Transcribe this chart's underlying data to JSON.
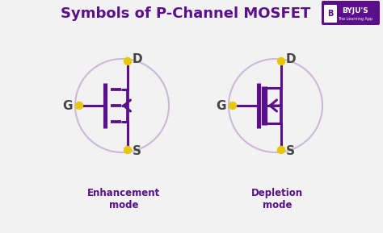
{
  "title": "Symbols of P-Channel MOSFET",
  "title_color": "#5b0f8a",
  "title_fontsize": 13,
  "bg_color": "#f2f2f2",
  "mosfet_color": "#5b0f8a",
  "dot_color": "#e6c800",
  "circle_color": "#cdb8d8",
  "label_color": "#5b0f8a",
  "label_color2": "#444444",
  "label_G": "G",
  "label_D": "D",
  "label_S": "S",
  "enhancement_label": "Enhancement\nmode",
  "depletion_label": "Depletion\nmode",
  "byju_box_color": "#5b0f8a"
}
